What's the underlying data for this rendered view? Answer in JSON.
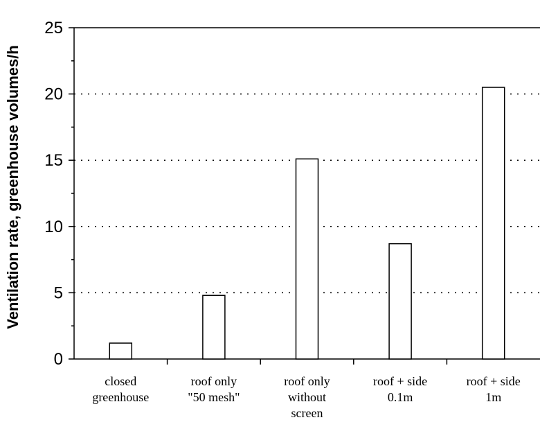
{
  "chart_data": {
    "type": "bar",
    "title": "",
    "xlabel": "",
    "ylabel": "Ventilation rate, greenhouse volumes/h",
    "ylim": [
      0,
      25
    ],
    "yticks": [
      "0",
      "5",
      "10",
      "15",
      "20",
      "25"
    ],
    "grid": "horizontal dotted",
    "categories": [
      [
        "closed",
        "greenhouse"
      ],
      [
        "roof only",
        "\"50 mesh\""
      ],
      [
        "roof only",
        "without",
        "screen"
      ],
      [
        "roof + side",
        "0.1m"
      ],
      [
        "roof + side",
        "1m"
      ]
    ],
    "values": [
      1.2,
      4.8,
      15.1,
      8.7,
      20.5
    ],
    "colors": {
      "bar_fill": "#ffffff",
      "bar_stroke": "#000000",
      "grid": "#000000"
    }
  }
}
